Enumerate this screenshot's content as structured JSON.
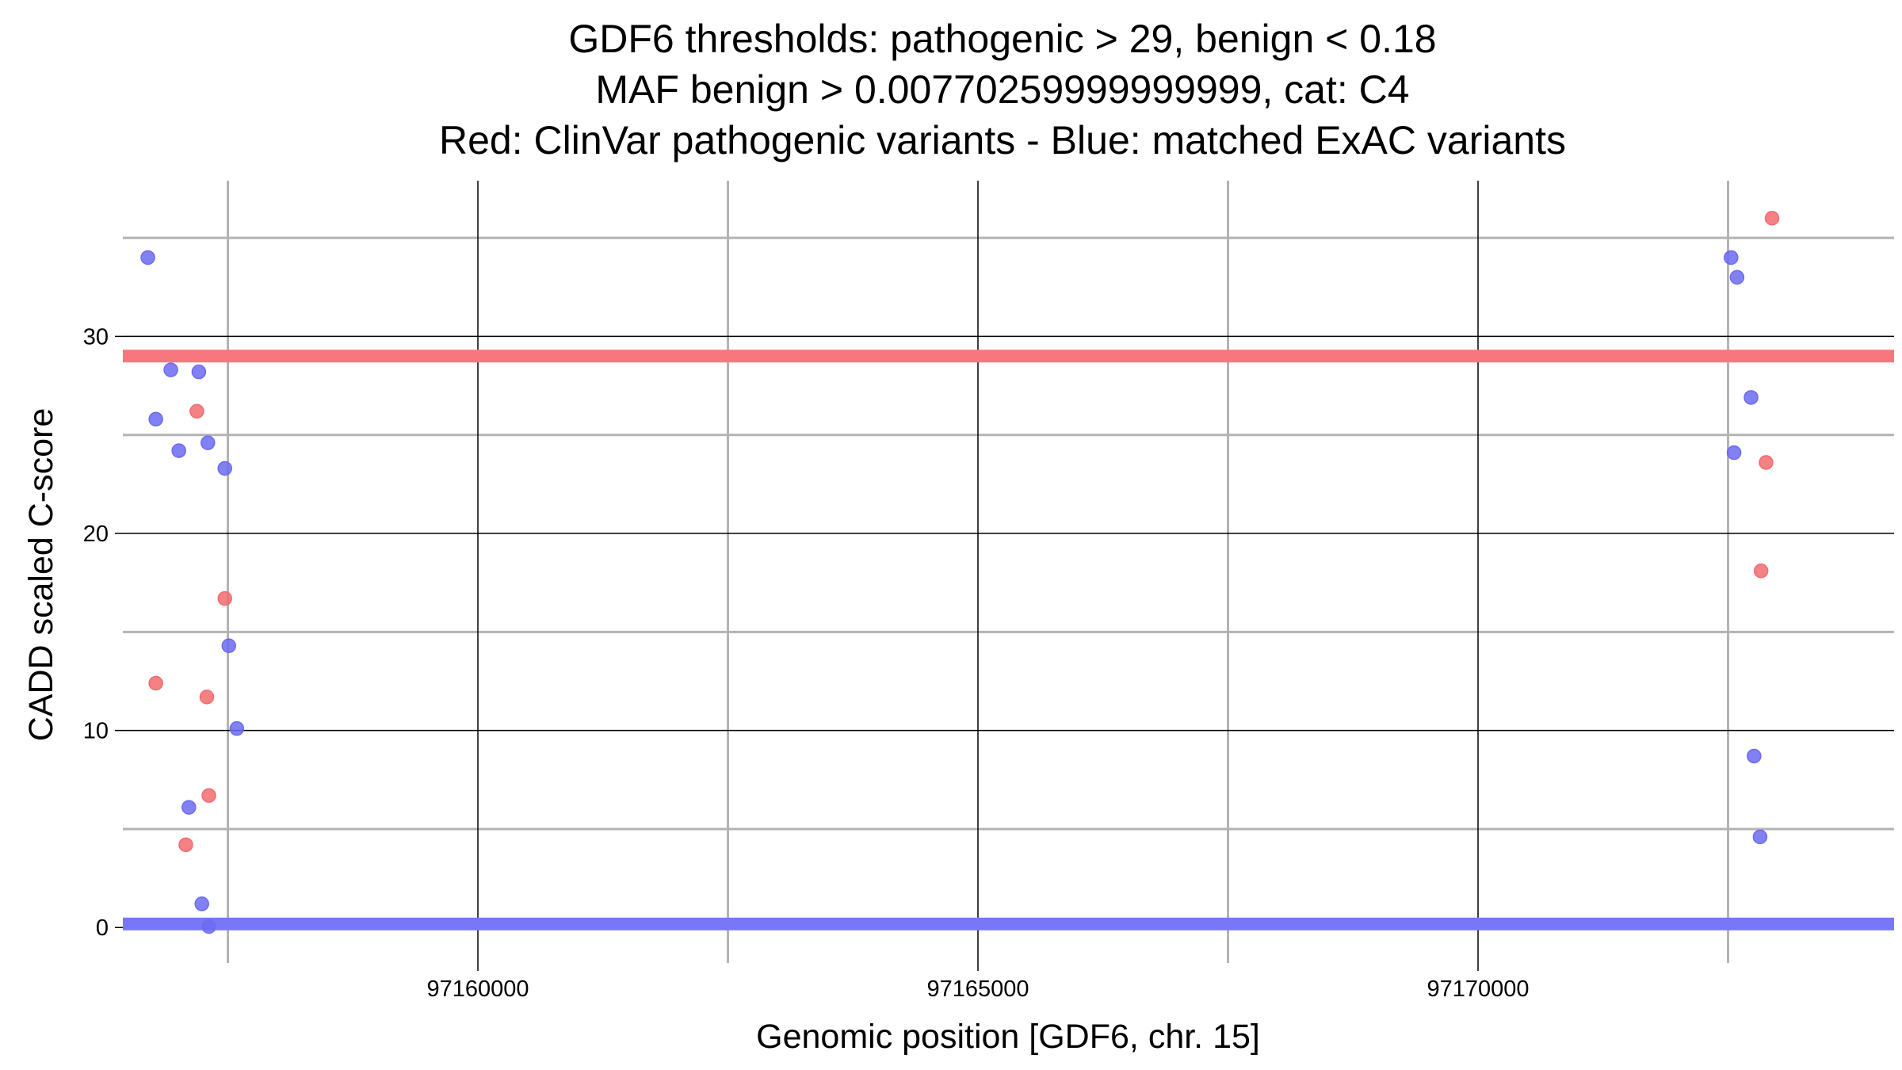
{
  "chart_data": {
    "type": "scatter",
    "title_lines": [
      "GDF6 thresholds: pathogenic > 29, benign < 0.18",
      "MAF benign > 0.00770259999999999, cat: C4",
      "Red: ClinVar pathogenic variants - Blue: matched ExAC variants"
    ],
    "xlabel": "Genomic position [GDF6, chr. 15]",
    "ylabel": "CADD scaled C-score",
    "xlim": [
      97156450,
      97174160
    ],
    "ylim": [
      -1.8,
      37.9
    ],
    "x_ticks": [
      97160000,
      97165000,
      97170000
    ],
    "x_tick_labels": [
      "97160000",
      "97165000",
      "97170000"
    ],
    "x_minor_gridlines": [
      97157500,
      97162500,
      97167500,
      97172500
    ],
    "y_ticks": [
      0,
      10,
      20,
      30
    ],
    "y_tick_labels": [
      "0",
      "10",
      "20",
      "30"
    ],
    "y_minor_gridlines": [
      5,
      15,
      25,
      35
    ],
    "grid": true,
    "thresholds": [
      {
        "label": "pathogenic",
        "y": 29,
        "color": "#f8767d"
      },
      {
        "label": "benign",
        "y": 0.18,
        "color": "#7777f7"
      }
    ],
    "series": [
      {
        "color": "#f26b6f",
        "points": [
          {
            "x": 97156780,
            "y": 12.4
          },
          {
            "x": 97157080,
            "y": 4.2
          },
          {
            "x": 97157190,
            "y": 26.2
          },
          {
            "x": 97157290,
            "y": 11.7
          },
          {
            "x": 97157310,
            "y": 6.7
          },
          {
            "x": 97157470,
            "y": 16.7
          },
          {
            "x": 97172830,
            "y": 18.1
          },
          {
            "x": 97172880,
            "y": 23.6
          },
          {
            "x": 97172940,
            "y": 36.0
          }
        ]
      },
      {
        "color": "#6b6bf2",
        "points": [
          {
            "x": 97156700,
            "y": 34.0
          },
          {
            "x": 97156780,
            "y": 25.8
          },
          {
            "x": 97156930,
            "y": 28.3
          },
          {
            "x": 97157010,
            "y": 24.2
          },
          {
            "x": 97157110,
            "y": 6.1
          },
          {
            "x": 97157210,
            "y": 28.2
          },
          {
            "x": 97157240,
            "y": 1.2
          },
          {
            "x": 97157300,
            "y": 24.6
          },
          {
            "x": 97157310,
            "y": 0.05
          },
          {
            "x": 97157470,
            "y": 23.3
          },
          {
            "x": 97157510,
            "y": 14.3
          },
          {
            "x": 97157590,
            "y": 10.1
          },
          {
            "x": 97172530,
            "y": 34.0
          },
          {
            "x": 97172560,
            "y": 24.1
          },
          {
            "x": 97172590,
            "y": 33.0
          },
          {
            "x": 97172730,
            "y": 26.9
          },
          {
            "x": 97172760,
            "y": 8.7
          },
          {
            "x": 97172820,
            "y": 4.6
          }
        ]
      }
    ]
  }
}
